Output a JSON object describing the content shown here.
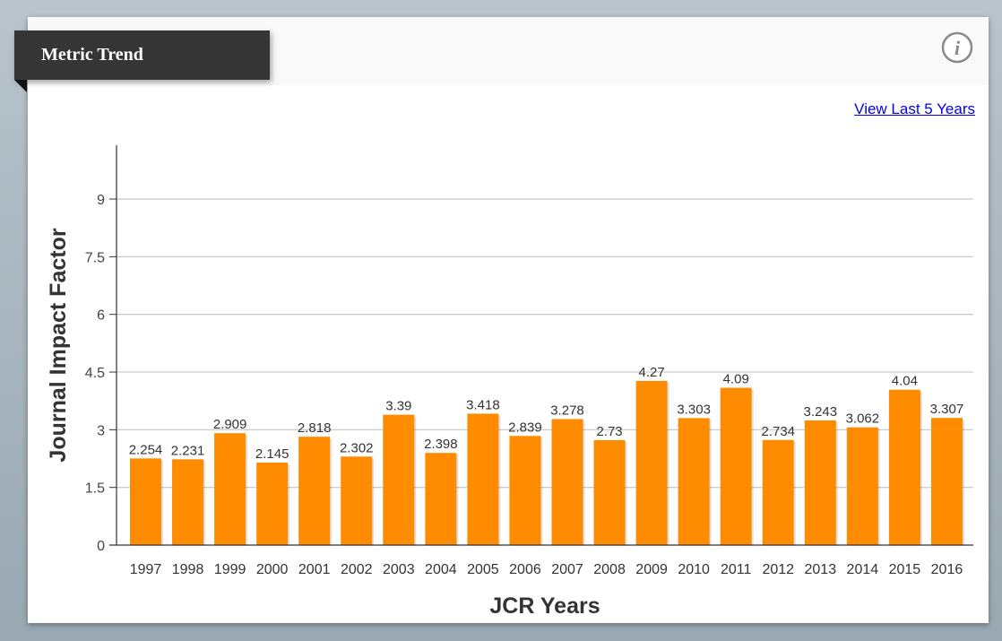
{
  "header": {
    "title": "Metric Trend",
    "info_icon": "info-icon"
  },
  "view_link": "View Last 5 Years",
  "chart_data": {
    "type": "bar",
    "title": "",
    "xlabel": "JCR Years",
    "ylabel": "Journal Impact Factor",
    "categories": [
      "1997",
      "1998",
      "1999",
      "2000",
      "2001",
      "2002",
      "2003",
      "2004",
      "2005",
      "2006",
      "2007",
      "2008",
      "2009",
      "2010",
      "2011",
      "2012",
      "2013",
      "2014",
      "2015",
      "2016"
    ],
    "values": [
      2.254,
      2.231,
      2.909,
      2.145,
      2.818,
      2.302,
      3.39,
      2.398,
      3.418,
      2.839,
      3.278,
      2.73,
      4.27,
      3.303,
      4.09,
      2.734,
      3.243,
      3.062,
      4.04,
      3.307
    ],
    "value_labels": [
      "2.254",
      "2.231",
      "2.909",
      "2.145",
      "2.818",
      "2.302",
      "3.39",
      "2.398",
      "3.418",
      "2.839",
      "3.278",
      "2.73",
      "4.27",
      "3.303",
      "4.09",
      "2.734",
      "3.243",
      "3.062",
      "4.04",
      "3.307"
    ],
    "yticks": [
      0,
      1.5,
      3,
      4.5,
      6,
      7.5,
      9
    ],
    "ytick_labels": [
      "0",
      "1.5",
      "3",
      "4.5",
      "6",
      "7.5",
      "9"
    ],
    "ylim": [
      0,
      10.4
    ],
    "grid": true,
    "colors": {
      "bar": "#ff8c00",
      "grid": "#cccccc",
      "axis": "#333333"
    }
  }
}
